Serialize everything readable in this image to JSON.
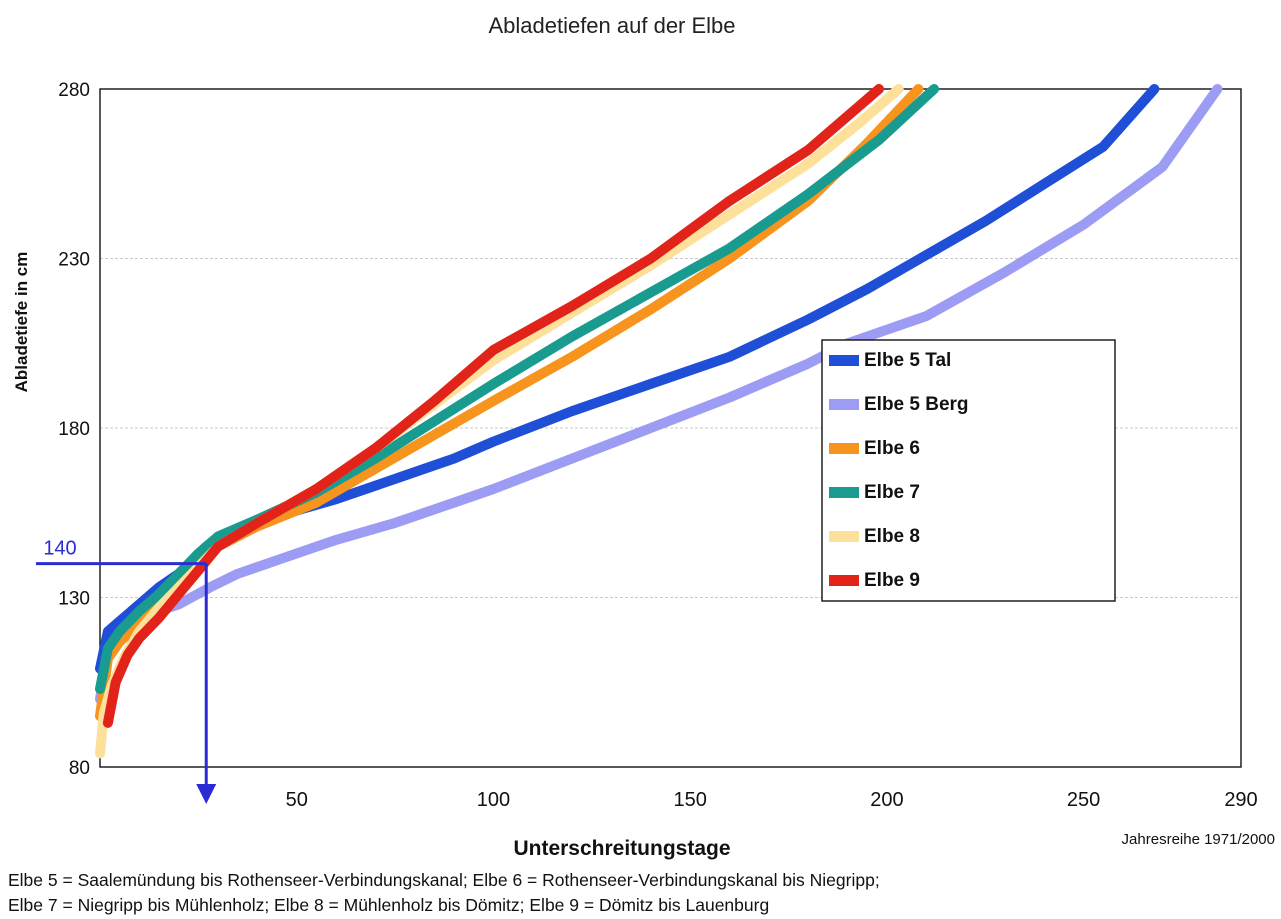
{
  "chart_data": {
    "type": "line",
    "title": "Abladetiefen auf der Elbe",
    "xlabel": "Unterschreitungstage",
    "ylabel": "Abladetiefe in cm",
    "xlim": [
      0,
      290
    ],
    "ylim": [
      80,
      280
    ],
    "x_ticks": [
      {
        "value": 50,
        "label": "50"
      },
      {
        "value": 100,
        "label": "100"
      },
      {
        "value": 150,
        "label": "150"
      },
      {
        "value": 200,
        "label": "200"
      },
      {
        "value": 250,
        "label": "250"
      },
      {
        "value": 290,
        "label": "290"
      }
    ],
    "y_ticks": [
      {
        "value": 80,
        "label": "80"
      },
      {
        "value": 130,
        "label": "130"
      },
      {
        "value": 180,
        "label": "180"
      },
      {
        "value": 230,
        "label": "230"
      },
      {
        "value": 280,
        "label": "280"
      }
    ],
    "grid": "horizontal",
    "legend_position": "right",
    "period_note": "Jahresreihe 1971/2000",
    "marker": {
      "label": "140",
      "y": 140,
      "x": 27,
      "color": "#2b2bd6"
    },
    "series": [
      {
        "name": "Elbe 5 Tal",
        "color": "#1f4fd6",
        "x": [
          0,
          2,
          5,
          10,
          15,
          20,
          27,
          35,
          45,
          60,
          75,
          90,
          100,
          120,
          140,
          160,
          180,
          195,
          210,
          225,
          240,
          255,
          268
        ],
        "y": [
          109,
          120,
          123,
          128,
          133,
          137,
          145,
          150,
          154,
          159,
          165,
          171,
          176,
          185,
          193,
          201,
          212,
          221,
          231,
          241,
          252,
          263,
          280
        ]
      },
      {
        "name": "Elbe 5 Berg",
        "color": "#9c9cf4",
        "x": [
          0,
          2,
          5,
          10,
          15,
          20,
          28,
          35,
          45,
          60,
          75,
          90,
          100,
          120,
          140,
          160,
          180,
          190,
          210,
          230,
          250,
          270,
          284
        ],
        "y": [
          100,
          114,
          118,
          122,
          126,
          128,
          133,
          137,
          141,
          147,
          152,
          158,
          162,
          171,
          180,
          189,
          199,
          205,
          213,
          226,
          240,
          257,
          280
        ]
      },
      {
        "name": "Elbe 6",
        "color": "#f7941d",
        "x": [
          0,
          2,
          5,
          10,
          15,
          20,
          25,
          30,
          40,
          55,
          70,
          85,
          100,
          120,
          140,
          160,
          180,
          195,
          208
        ],
        "y": [
          95,
          112,
          117,
          122,
          128,
          134,
          140,
          145,
          151,
          158,
          168,
          178,
          188,
          201,
          215,
          230,
          247,
          264,
          280
        ]
      },
      {
        "name": "Elbe 7",
        "color": "#1a9b8f",
        "x": [
          0,
          2,
          5,
          10,
          15,
          20,
          25,
          30,
          40,
          55,
          70,
          85,
          100,
          120,
          140,
          160,
          180,
          198,
          212
        ],
        "y": [
          103,
          115,
          120,
          126,
          131,
          137,
          143,
          148,
          153,
          161,
          171,
          182,
          193,
          207,
          220,
          233,
          249,
          265,
          280
        ]
      },
      {
        "name": "Elbe 8",
        "color": "#fde09a",
        "x": [
          0,
          1,
          3,
          6,
          10,
          15,
          20,
          25,
          30,
          40,
          55,
          70,
          85,
          100,
          120,
          140,
          160,
          180,
          193,
          203
        ],
        "y": [
          84,
          96,
          104,
          112,
          120,
          127,
          133,
          139,
          145,
          152,
          162,
          174,
          187,
          200,
          214,
          228,
          243,
          258,
          270,
          280
        ]
      },
      {
        "name": "Elbe 9",
        "color": "#e2231a",
        "x": [
          2,
          4,
          7,
          10,
          15,
          20,
          25,
          30,
          40,
          55,
          70,
          85,
          100,
          120,
          140,
          160,
          180,
          198
        ],
        "y": [
          93,
          105,
          113,
          118,
          124,
          131,
          138,
          145,
          152,
          162,
          174,
          188,
          203,
          216,
          230,
          247,
          262,
          280
        ]
      }
    ]
  },
  "footnote": {
    "line1": "Elbe 5 = Saalemündung bis Rothenseer-Verbindungskanal; Elbe 6 = Rothenseer-Verbindungskanal bis Niegripp;",
    "line2": "Elbe 7 = Niegripp bis Mühlenholz; Elbe 8 = Mühlenholz bis Dömitz; Elbe 9 = Dömitz bis Lauenburg"
  }
}
